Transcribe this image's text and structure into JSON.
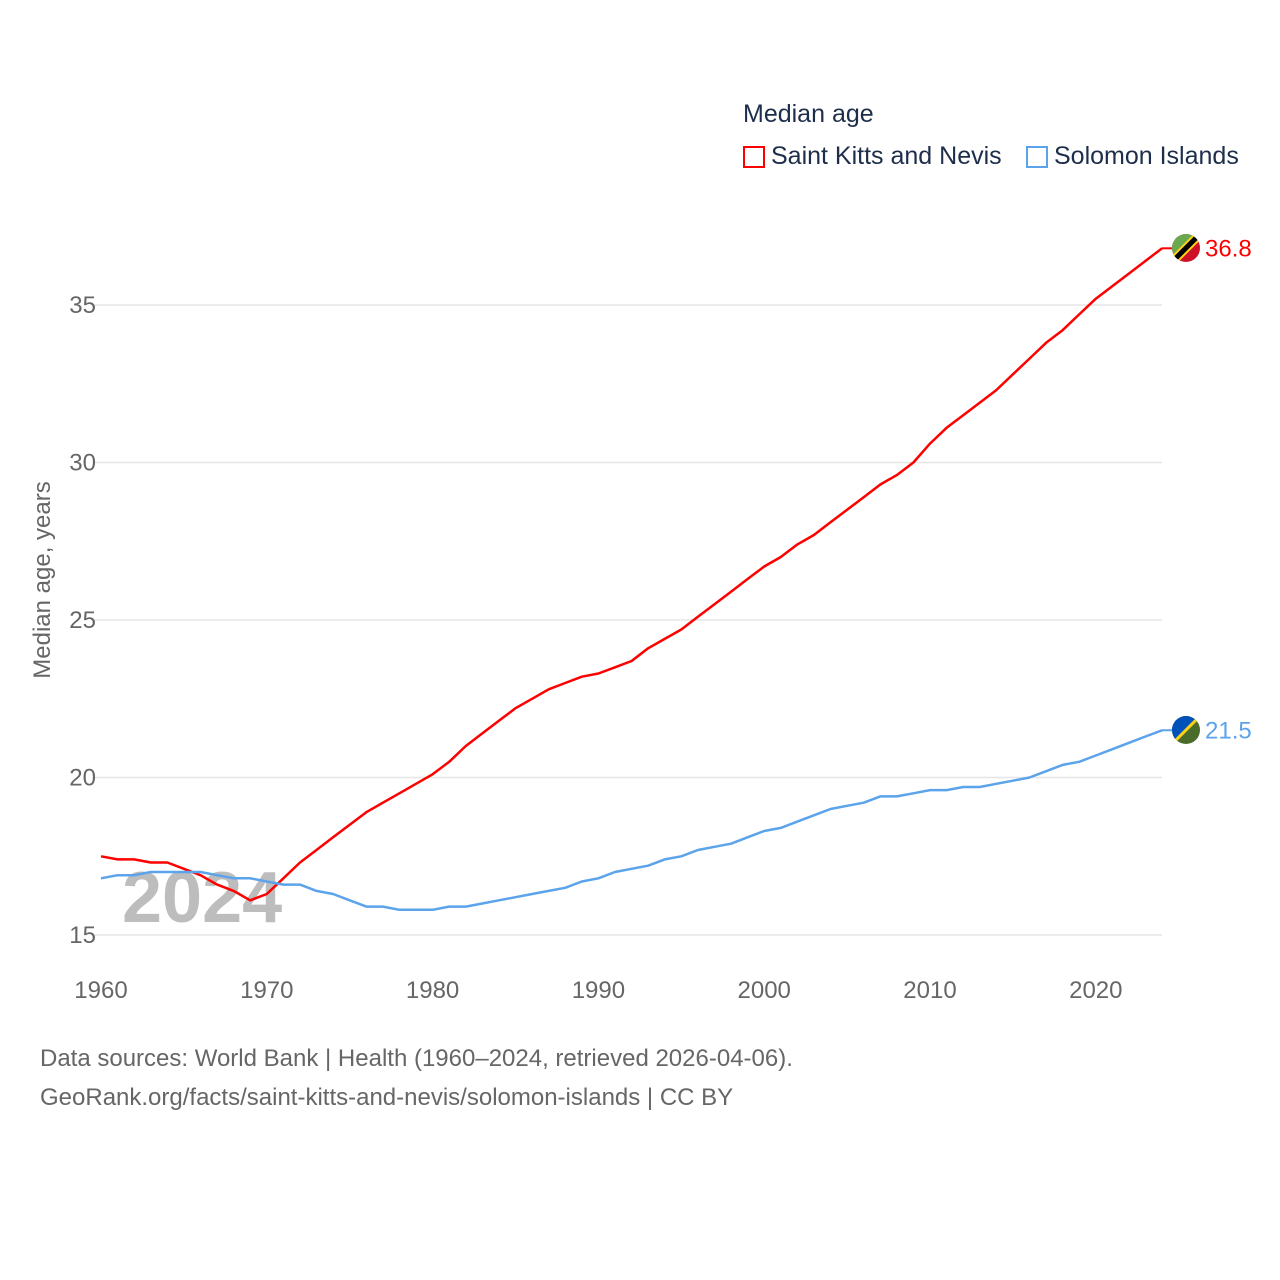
{
  "chart_data": {
    "type": "line",
    "title": "",
    "legend_title": "Median age",
    "legend_placement": "top-right",
    "ylabel": "Median age, years",
    "xlabel": "",
    "xlim": [
      1960,
      2024
    ],
    "ylim": [
      14,
      37.5
    ],
    "yticks": [
      15,
      20,
      25,
      30,
      35
    ],
    "xticks": [
      1960,
      1970,
      1980,
      1990,
      2000,
      2010,
      2020
    ],
    "grid": true,
    "watermark_year": "2024",
    "x_start": 1960,
    "series": [
      {
        "name": "Saint Kitts and Nevis",
        "color": "#ff0000",
        "end_label": "36.8",
        "flag": "saint-kitts-and-nevis-flag-icon",
        "values": [
          17.5,
          17.4,
          17.4,
          17.3,
          17.3,
          17.1,
          16.9,
          16.6,
          16.4,
          16.1,
          16.3,
          16.8,
          17.3,
          17.7,
          18.1,
          18.5,
          18.9,
          19.2,
          19.5,
          19.8,
          20.1,
          20.5,
          21.0,
          21.4,
          21.8,
          22.2,
          22.5,
          22.8,
          23.0,
          23.2,
          23.3,
          23.5,
          23.7,
          24.1,
          24.4,
          24.7,
          25.1,
          25.5,
          25.9,
          26.3,
          26.7,
          27.0,
          27.4,
          27.7,
          28.1,
          28.5,
          28.9,
          29.3,
          29.6,
          30.0,
          30.6,
          31.1,
          31.5,
          31.9,
          32.3,
          32.8,
          33.3,
          33.8,
          34.2,
          34.7,
          35.2,
          35.6,
          36.0,
          36.4,
          36.8
        ]
      },
      {
        "name": "Solomon Islands",
        "color": "#5ba3ea",
        "end_label": "21.5",
        "flag": "solomon-islands-flag-icon",
        "values": [
          16.8,
          16.9,
          16.9,
          17.0,
          17.0,
          17.0,
          17.0,
          16.9,
          16.8,
          16.8,
          16.7,
          16.6,
          16.6,
          16.4,
          16.3,
          16.1,
          15.9,
          15.9,
          15.8,
          15.8,
          15.8,
          15.9,
          15.9,
          16.0,
          16.1,
          16.2,
          16.3,
          16.4,
          16.5,
          16.7,
          16.8,
          17.0,
          17.1,
          17.2,
          17.4,
          17.5,
          17.7,
          17.8,
          17.9,
          18.1,
          18.3,
          18.4,
          18.6,
          18.8,
          19.0,
          19.1,
          19.2,
          19.4,
          19.4,
          19.5,
          19.6,
          19.6,
          19.7,
          19.7,
          19.8,
          19.9,
          20.0,
          20.2,
          20.4,
          20.5,
          20.7,
          20.9,
          21.1,
          21.3,
          21.5
        ]
      }
    ]
  },
  "footer": {
    "line1": "Data sources: World Bank | Health (1960–2024, retrieved 2026-04-06).",
    "line2": "GeoRank.org/facts/saint-kitts-and-nevis/solomon-islands | CC BY"
  }
}
